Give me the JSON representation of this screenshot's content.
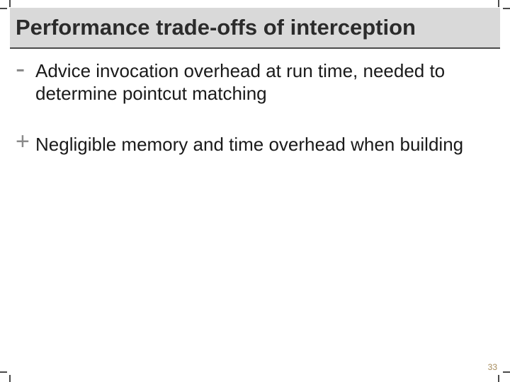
{
  "title": "Performance trade-offs of interception",
  "points": [
    {
      "sign": "-",
      "text": "Advice invocation overhead at run time, needed to determine pointcut matching"
    },
    {
      "sign": "+",
      "text": "Negligible memory and time overhead when building"
    }
  ],
  "page_number": "33",
  "colors": {
    "title_bg": "#d9d9d9",
    "title_text": "#2b2b2b",
    "rule": "#4a4a4a",
    "sign": "#8a8a8a",
    "body_text": "#1a1a1a",
    "page_num": "#a68b5b",
    "background": "#ffffff"
  },
  "fonts": {
    "title_size": 31,
    "body_size": 26,
    "sign_minus_size": 40,
    "sign_plus_size": 34,
    "page_num_size": 12
  }
}
